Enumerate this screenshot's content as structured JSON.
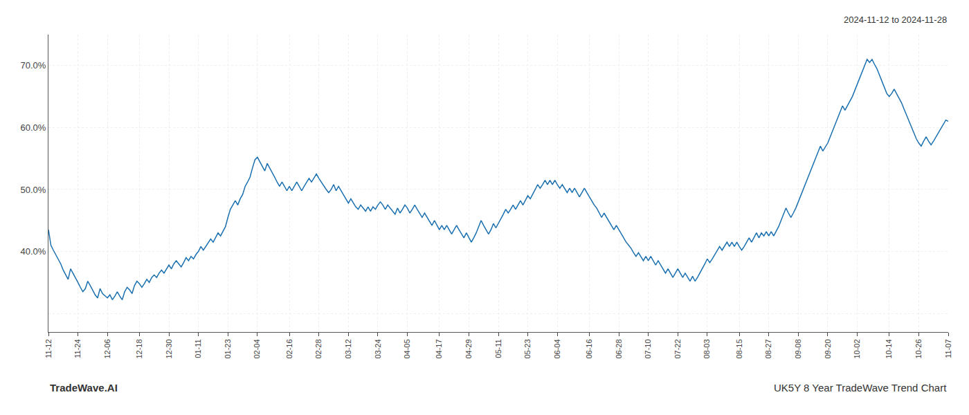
{
  "chart_data": {
    "type": "line",
    "title": "UK5Y 8 Year TradeWave Trend Chart",
    "subtitle": "2024-11-12 to 2024-11-28",
    "annotations": [
      "TradeWave.AI"
    ],
    "color": "#1a6faf",
    "grid": true,
    "ylim": [
      27,
      75
    ],
    "yticks": [
      {
        "value": 30,
        "label": ""
      },
      {
        "value": 40,
        "label": "40.0%"
      },
      {
        "value": 50,
        "label": "50.0%"
      },
      {
        "value": 60,
        "label": "60.0%"
      },
      {
        "value": 70,
        "label": "70.0%"
      }
    ],
    "categories": [
      "11-12",
      null,
      null,
      null,
      null,
      null,
      null,
      null,
      null,
      null,
      null,
      null,
      "11-24",
      null,
      null,
      null,
      null,
      null,
      null,
      null,
      null,
      null,
      null,
      null,
      "12-06",
      null,
      null,
      null,
      null,
      null,
      null,
      null,
      null,
      null,
      null,
      null,
      null,
      "12-18",
      null,
      null,
      null,
      null,
      null,
      null,
      null,
      null,
      null,
      null,
      null,
      "12-30",
      null,
      null,
      null,
      null,
      null,
      null,
      null,
      null,
      null,
      null,
      null,
      "01-11",
      null,
      null,
      null,
      null,
      null,
      null,
      null,
      null,
      null,
      null,
      null,
      "01-23",
      null,
      null,
      null,
      null,
      null,
      null,
      null,
      null,
      null,
      null,
      null,
      "02-04",
      null,
      null,
      null,
      null,
      null,
      null,
      null,
      null,
      null,
      null,
      null,
      null,
      "02-16",
      null,
      null,
      null,
      null,
      null,
      null,
      null,
      null,
      null,
      null,
      null,
      "02-28",
      null,
      null,
      null,
      null,
      null,
      null,
      null,
      null,
      null,
      null,
      null,
      "03-12",
      null,
      null,
      null,
      null,
      null,
      null,
      null,
      null,
      null,
      null,
      null,
      "03-24",
      null,
      null,
      null,
      null,
      null,
      null,
      null,
      null,
      null,
      null,
      null,
      "04-05",
      null,
      null,
      null,
      null,
      null,
      null,
      null,
      null,
      null,
      null,
      null,
      null,
      "04-17",
      null,
      null,
      null,
      null,
      null,
      null,
      null,
      null,
      null,
      null,
      null,
      "04-29",
      null,
      null,
      null,
      null,
      null,
      null,
      null,
      null,
      null,
      null,
      null,
      "05-11",
      null,
      null,
      null,
      null,
      null,
      null,
      null,
      null,
      null,
      null,
      null,
      "05-23",
      null,
      null,
      null,
      null,
      null,
      null,
      null,
      null,
      null,
      null,
      null,
      "06-04",
      null,
      null,
      null,
      null,
      null,
      null,
      null,
      null,
      null,
      null,
      null,
      null,
      "06-16",
      null,
      null,
      null,
      null,
      null,
      null,
      null,
      null,
      null,
      null,
      null,
      "06-28",
      null,
      null,
      null,
      null,
      null,
      null,
      null,
      null,
      null,
      null,
      null,
      "07-10",
      null,
      null,
      null,
      null,
      null,
      null,
      null,
      null,
      null,
      null,
      null,
      "07-22",
      null,
      null,
      null,
      null,
      null,
      null,
      null,
      null,
      null,
      null,
      null,
      "08-03",
      null,
      null,
      null,
      null,
      null,
      null,
      null,
      null,
      null,
      null,
      null,
      null,
      "08-15",
      null,
      null,
      null,
      null,
      null,
      null,
      null,
      null,
      null,
      null,
      null,
      "08-27",
      null,
      null,
      null,
      null,
      null,
      null,
      null,
      null,
      null,
      null,
      null,
      "09-08",
      null,
      null,
      null,
      null,
      null,
      null,
      null,
      null,
      null,
      null,
      null,
      "09-20",
      null,
      null,
      null,
      null,
      null,
      null,
      null,
      null,
      null,
      null,
      null,
      "10-02",
      null,
      null,
      null,
      null,
      null,
      null,
      null,
      null,
      null,
      null,
      null,
      null,
      "10-14",
      null,
      null,
      null,
      null,
      null,
      null,
      null,
      null,
      null,
      null,
      null,
      "10-26",
      null,
      null,
      null,
      null,
      null,
      null,
      null,
      null,
      null,
      null,
      null,
      "11-07"
    ],
    "values": [
      43.5,
      41.0,
      40.2,
      39.5,
      38.8,
      38.0,
      37.0,
      36.2,
      35.5,
      37.2,
      36.5,
      35.8,
      35.0,
      34.2,
      33.5,
      34.0,
      35.2,
      34.5,
      33.8,
      33.0,
      32.5,
      34.0,
      33.2,
      32.8,
      32.5,
      33.0,
      32.2,
      32.8,
      33.5,
      32.8,
      32.2,
      33.5,
      34.2,
      33.8,
      33.2,
      34.5,
      35.2,
      34.8,
      34.2,
      34.8,
      35.5,
      35.0,
      35.8,
      36.2,
      35.8,
      36.5,
      37.0,
      36.5,
      37.2,
      37.8,
      37.2,
      38.0,
      38.5,
      38.0,
      37.5,
      38.2,
      39.0,
      38.5,
      39.2,
      38.8,
      39.5,
      40.0,
      40.8,
      40.2,
      40.8,
      41.5,
      42.0,
      41.5,
      42.2,
      43.0,
      42.5,
      43.2,
      44.0,
      45.5,
      46.8,
      47.5,
      48.2,
      47.5,
      48.5,
      49.2,
      50.5,
      51.2,
      52.0,
      53.5,
      54.8,
      55.2,
      54.5,
      53.8,
      53.0,
      54.2,
      53.5,
      52.8,
      52.0,
      51.2,
      50.5,
      51.2,
      50.5,
      49.8,
      50.5,
      49.8,
      50.5,
      51.2,
      50.5,
      49.8,
      50.5,
      51.2,
      51.8,
      51.2,
      51.8,
      52.5,
      51.8,
      51.2,
      50.5,
      50.0,
      49.5,
      50.0,
      50.8,
      49.8,
      50.5,
      49.8,
      49.2,
      48.5,
      47.8,
      48.5,
      47.8,
      47.2,
      46.8,
      47.5,
      47.0,
      46.5,
      47.2,
      46.5,
      47.2,
      46.8,
      47.5,
      48.0,
      47.5,
      46.8,
      47.5,
      47.0,
      46.5,
      46.0,
      47.0,
      46.2,
      46.8,
      47.5,
      47.0,
      46.2,
      46.8,
      47.5,
      46.8,
      46.2,
      45.5,
      46.2,
      45.5,
      44.8,
      44.2,
      45.0,
      44.2,
      43.5,
      44.2,
      43.5,
      44.2,
      43.5,
      42.8,
      43.5,
      44.2,
      43.5,
      42.8,
      42.2,
      43.0,
      42.2,
      41.5,
      42.2,
      43.0,
      44.0,
      45.0,
      44.2,
      43.5,
      42.8,
      43.5,
      44.5,
      43.8,
      44.5,
      45.2,
      46.0,
      46.8,
      46.2,
      46.8,
      47.5,
      46.8,
      47.5,
      48.2,
      47.5,
      48.2,
      49.0,
      48.5,
      49.2,
      50.0,
      50.8,
      50.2,
      50.8,
      51.5,
      50.8,
      51.5,
      50.8,
      51.5,
      50.8,
      50.2,
      50.8,
      50.2,
      49.5,
      50.2,
      49.5,
      50.2,
      49.5,
      48.8,
      49.5,
      50.2,
      49.5,
      48.8,
      48.2,
      47.5,
      47.0,
      46.2,
      45.5,
      46.2,
      45.5,
      44.8,
      44.2,
      43.5,
      44.2,
      43.5,
      42.8,
      42.2,
      41.5,
      41.0,
      40.5,
      39.8,
      39.2,
      39.8,
      39.2,
      38.5,
      39.2,
      38.5,
      39.2,
      38.5,
      37.8,
      38.5,
      37.8,
      37.2,
      36.5,
      37.2,
      36.5,
      35.8,
      36.5,
      37.2,
      36.5,
      35.8,
      36.5,
      35.8,
      35.2,
      36.0,
      35.2,
      35.8,
      36.5,
      37.2,
      38.0,
      38.8,
      38.2,
      38.8,
      39.5,
      40.2,
      40.8,
      40.2,
      40.8,
      41.5,
      40.8,
      41.5,
      40.8,
      41.5,
      40.8,
      40.2,
      40.8,
      41.5,
      42.2,
      41.5,
      42.2,
      43.0,
      42.2,
      43.0,
      42.5,
      43.2,
      42.5,
      43.2,
      42.5,
      43.2,
      44.0,
      45.0,
      46.0,
      47.0,
      46.2,
      45.5,
      46.2,
      47.0,
      48.0,
      49.0,
      50.0,
      51.0,
      52.0,
      53.0,
      54.0,
      55.0,
      56.0,
      57.0,
      56.2,
      56.8,
      57.5,
      58.5,
      59.5,
      60.5,
      61.5,
      62.5,
      63.5,
      62.8,
      63.5,
      64.2,
      65.0,
      66.0,
      67.0,
      68.0,
      69.0,
      70.0,
      71.0,
      70.5,
      71.0,
      70.2,
      69.5,
      68.5,
      67.5,
      66.5,
      65.5,
      65.0,
      65.5,
      66.2,
      65.5,
      64.8,
      64.0,
      63.0,
      62.0,
      61.0,
      60.0,
      59.0,
      58.2,
      57.5,
      57.0,
      57.8,
      58.5,
      57.8,
      57.2,
      57.8,
      58.5,
      59.2,
      59.8,
      60.5,
      61.2,
      61.0
    ]
  }
}
